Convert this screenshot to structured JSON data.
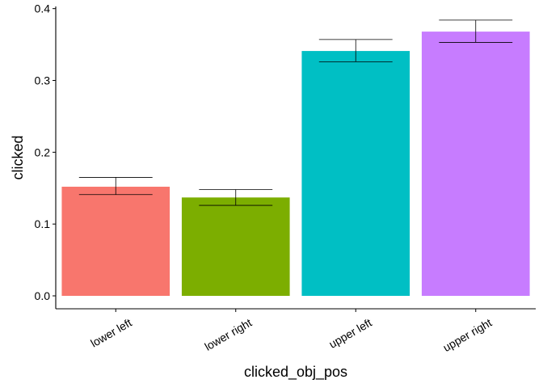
{
  "chart_data": {
    "type": "bar",
    "title": "",
    "xlabel": "clicked_obj_pos",
    "ylabel": "clicked",
    "categories": [
      "lower left",
      "lower right",
      "upper left",
      "upper right"
    ],
    "values": [
      0.152,
      0.137,
      0.341,
      0.368
    ],
    "error_bars": [
      {
        "low": 0.141,
        "high": 0.165
      },
      {
        "low": 0.126,
        "high": 0.148
      },
      {
        "low": 0.326,
        "high": 0.357
      },
      {
        "low": 0.353,
        "high": 0.384
      }
    ],
    "colors": [
      "#F8766D",
      "#7CAE00",
      "#00BFC4",
      "#C77CFF"
    ],
    "ylim": [
      -0.018,
      0.403
    ],
    "yticks": [
      0.0,
      0.1,
      0.2,
      0.3,
      0.4
    ],
    "ytick_labels": [
      "0.0",
      "0.1",
      "0.2",
      "0.3",
      "0.4"
    ],
    "grid": false,
    "legend": "none"
  }
}
